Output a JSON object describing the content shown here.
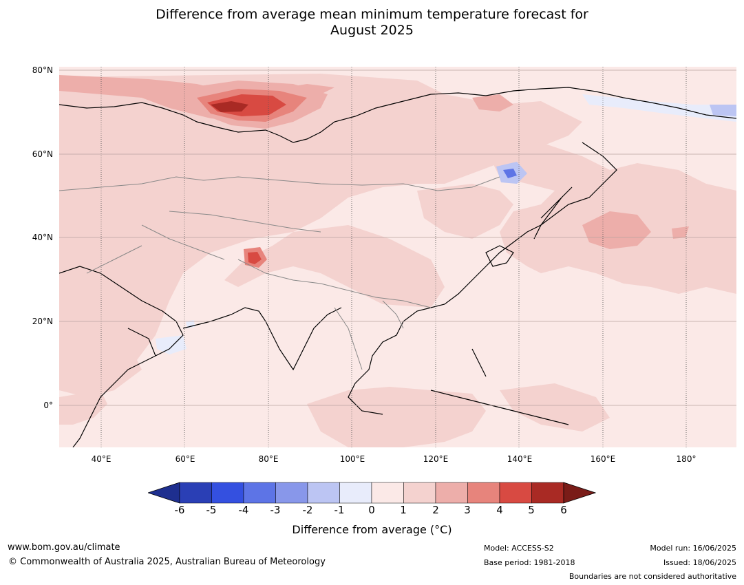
{
  "title_line1": "Difference from average mean minimum temperature forecast for",
  "title_line2": "August 2025",
  "lat_labels": [
    "80°N",
    "60°N",
    "40°N",
    "20°N",
    "0°"
  ],
  "lon_labels": [
    "40°E",
    "60°E",
    "80°E",
    "100°E",
    "120°E",
    "140°E",
    "160°E",
    "180°"
  ],
  "map": {
    "lon_range": [
      30,
      192
    ],
    "lat_range": [
      -10,
      81
    ],
    "features": [
      "Strong warm anomaly over northern Russia near the Kara Sea",
      "Warm spot over the western Himalaya",
      "Cool anomaly near Sakhalin",
      "Weak cool anomaly in the Arabian Sea"
    ]
  },
  "colorbar": {
    "ticks": [
      "-6",
      "-5",
      "-4",
      "-3",
      "-2",
      "-1",
      "0",
      "1",
      "2",
      "3",
      "4",
      "5",
      "6"
    ],
    "colors": [
      "#1e2f8f",
      "#2a3fb5",
      "#3450e0",
      "#5d74e6",
      "#8897ea",
      "#bcc5f3",
      "#e8ecfb",
      "#fbe9e7",
      "#f4d2cf",
      "#edaeaa",
      "#e7847c",
      "#d84a42",
      "#a92a24",
      "#7a1c18"
    ],
    "label": "Difference from average (°C)"
  },
  "footer": {
    "website": "www.bom.gov.au/climate",
    "copyright": "© Commonwealth of Australia 2025, Australian Bureau of Meteorology",
    "model": "Model: ACCESS-S2",
    "base_period": "Base period: 1981-2018",
    "model_run": "Model run: 16/06/2025",
    "issued": "Issued: 18/06/2025",
    "boundaries_note": "Boundaries are not considered authoritative"
  }
}
